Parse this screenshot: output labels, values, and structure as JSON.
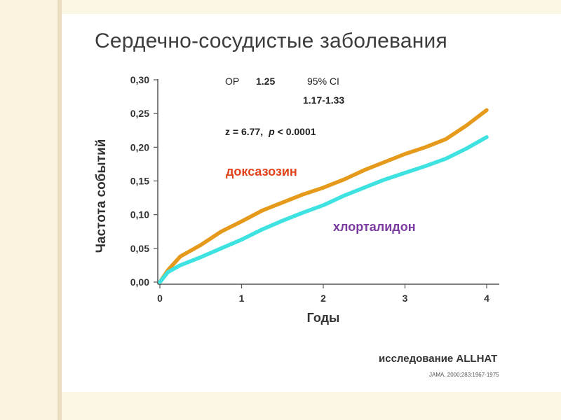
{
  "title": "Сердечно-сосудистые заболевания",
  "chart_data": {
    "type": "line",
    "ylabel": "Частота событий",
    "xlabel": "Годы",
    "x_ticks": [
      "0",
      "1",
      "2",
      "3",
      "4"
    ],
    "y_ticks": [
      "0,00",
      "0,05",
      "0,10",
      "0,15",
      "0,20",
      "0,25",
      "0,30"
    ],
    "xlim": [
      0,
      4
    ],
    "ylim": [
      0,
      0.3
    ],
    "grid": false,
    "stats": {
      "rr_label": "ОР",
      "rr_value": "1.25",
      "ci_label": "95% CI",
      "ci_value": "1.17-1.33",
      "z_text": "z = 6.77,",
      "p_symbol": "p",
      "p_text": "< 0.0001"
    },
    "series": [
      {
        "name": "доксазозин",
        "color": "#e59a1b",
        "label_color": "#e0421b",
        "x": [
          0,
          0.1,
          0.25,
          0.5,
          0.75,
          1.0,
          1.25,
          1.5,
          1.75,
          2.0,
          2.25,
          2.5,
          2.75,
          3.0,
          3.25,
          3.5,
          3.75,
          4.0
        ],
        "y": [
          0.0,
          0.018,
          0.038,
          0.055,
          0.075,
          0.09,
          0.106,
          0.118,
          0.13,
          0.14,
          0.152,
          0.166,
          0.178,
          0.19,
          0.2,
          0.212,
          0.232,
          0.255
        ]
      },
      {
        "name": "хлорталидон",
        "color": "#3ee2e0",
        "label_color": "#7a3aa0",
        "x": [
          0,
          0.1,
          0.25,
          0.5,
          0.75,
          1.0,
          1.25,
          1.5,
          1.75,
          2.0,
          2.25,
          2.5,
          2.75,
          3.0,
          3.25,
          3.5,
          3.75,
          4.0
        ],
        "y": [
          0.0,
          0.015,
          0.025,
          0.037,
          0.05,
          0.063,
          0.078,
          0.091,
          0.103,
          0.114,
          0.128,
          0.14,
          0.152,
          0.162,
          0.172,
          0.183,
          0.198,
          0.215
        ]
      }
    ]
  },
  "footer": {
    "study": "исследование ALLHAT",
    "citation": "JAMA. 2000;283:1967-1975"
  }
}
